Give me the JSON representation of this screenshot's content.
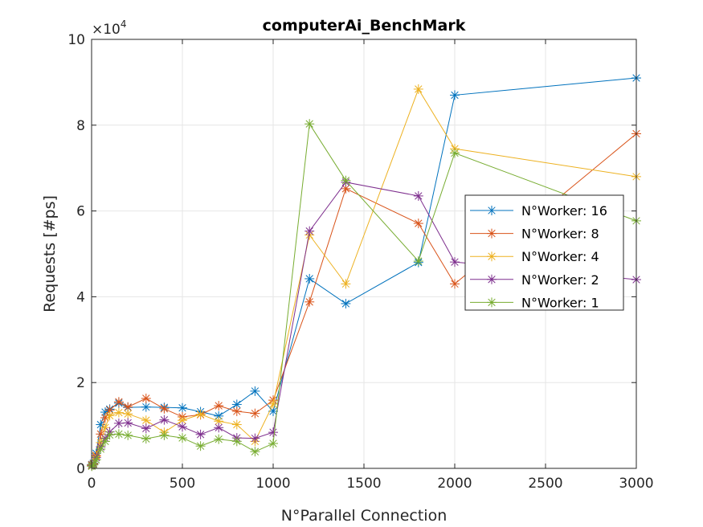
{
  "chart_data": {
    "type": "line",
    "title": "computerAi_BenchMark",
    "xlabel": "N°Parallel Connection",
    "ylabel": "Requests [#ps]",
    "xlim": [
      0,
      3000
    ],
    "ylim": [
      0,
      100000
    ],
    "xticks": [
      0,
      500,
      1000,
      1500,
      2000,
      2500,
      3000
    ],
    "xtick_labels": [
      "0",
      "500",
      "1000",
      "1500",
      "2000",
      "2500",
      "3000"
    ],
    "yticks": [
      0,
      20000,
      40000,
      60000,
      80000,
      100000
    ],
    "ytick_labels": [
      "0",
      "2",
      "4",
      "6",
      "8",
      "10"
    ],
    "y_exponent_base": "×10",
    "y_exponent_power": "4",
    "grid": true,
    "legend_position": "right",
    "marker": "asterisk",
    "x": [
      1,
      10,
      25,
      50,
      75,
      100,
      150,
      200,
      300,
      400,
      500,
      600,
      700,
      800,
      900,
      1000,
      1200,
      1400,
      1800,
      2000,
      3000
    ],
    "series": [
      {
        "name": "N°Worker: 16",
        "color": "#0072BD",
        "values": [
          900,
          1200,
          3500,
          10200,
          13100,
          13800,
          15200,
          14200,
          14300,
          14200,
          14100,
          13200,
          12200,
          14900,
          18000,
          13300,
          44200,
          38400,
          48000,
          87000,
          91000
        ]
      },
      {
        "name": "N°Worker: 8",
        "color": "#D95319",
        "values": [
          800,
          1100,
          3000,
          8000,
          11800,
          13600,
          15500,
          14300,
          16300,
          13900,
          12000,
          12500,
          14600,
          13300,
          12800,
          15900,
          38800,
          65200,
          57100,
          43000,
          78000
        ]
      },
      {
        "name": "N°Worker: 4",
        "color": "#EDB120",
        "values": [
          700,
          1000,
          2800,
          6000,
          9500,
          12300,
          13000,
          12700,
          11200,
          8400,
          11200,
          12600,
          11000,
          10200,
          6300,
          15000,
          54400,
          43000,
          88400,
          74500,
          68000
        ]
      },
      {
        "name": "N°Worker: 2",
        "color": "#7E2F8E",
        "values": [
          600,
          900,
          2500,
          5000,
          7000,
          8500,
          10500,
          10600,
          9300,
          11300,
          9700,
          7900,
          9500,
          7100,
          7000,
          8400,
          55300,
          66700,
          63500,
          48100,
          44000
        ]
      },
      {
        "name": "N°Worker: 1",
        "color": "#77AC30",
        "values": [
          500,
          800,
          2000,
          4500,
          6300,
          7800,
          8000,
          7700,
          6900,
          7700,
          7100,
          5200,
          6800,
          6300,
          3900,
          5800,
          80300,
          67100,
          48300,
          73500,
          57700
        ]
      }
    ]
  }
}
